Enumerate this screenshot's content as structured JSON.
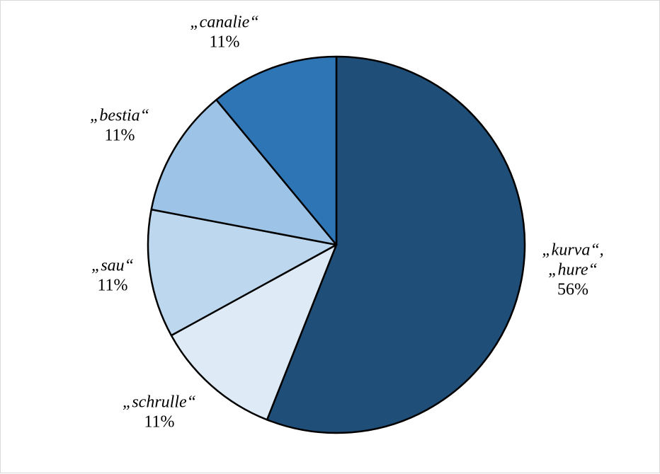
{
  "chart_data": {
    "type": "pie",
    "title": "",
    "start_angle_deg": 0,
    "direction": "clockwise",
    "slices": [
      {
        "label_lines": [
          "„kurva“,",
          "„hure“"
        ],
        "value": 56,
        "percent_label": "56%",
        "color": "#1f4e79"
      },
      {
        "label_lines": [
          "„schrulle“"
        ],
        "value": 11,
        "percent_label": "11%",
        "color": "#deebf7"
      },
      {
        "label_lines": [
          "„sau“"
        ],
        "value": 11,
        "percent_label": "11%",
        "color": "#bdd7ee"
      },
      {
        "label_lines": [
          "„bestia“"
        ],
        "value": 11,
        "percent_label": "11%",
        "color": "#9dc3e6"
      },
      {
        "label_lines": [
          "„canalie“"
        ],
        "value": 11,
        "percent_label": "11%",
        "color": "#2e75b6"
      }
    ]
  }
}
